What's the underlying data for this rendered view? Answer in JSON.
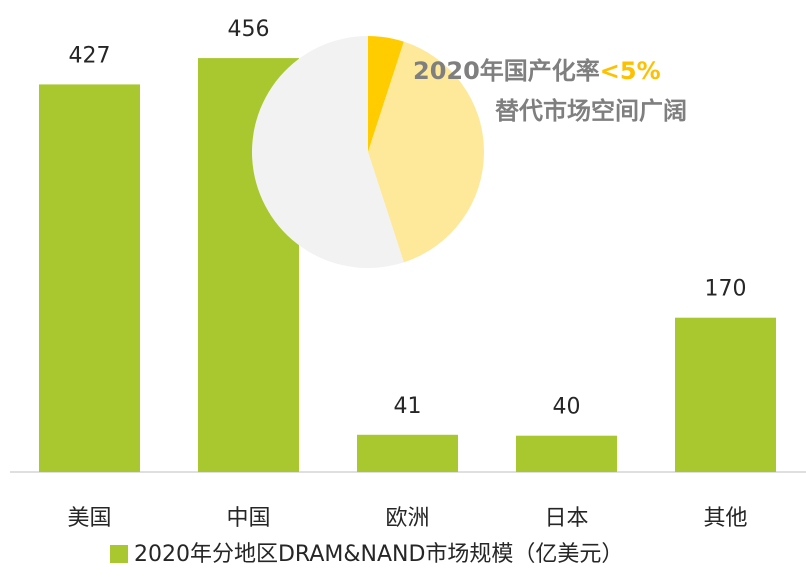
{
  "chart_data": [
    {
      "type": "bar",
      "categories": [
        "美国",
        "中国",
        "欧洲",
        "日本",
        "其他"
      ],
      "series": [
        {
          "name": "2020年分地区DRAM&NAND市场规模（亿美元）",
          "color": "#a9c830",
          "values": [
            427,
            456,
            41,
            40,
            170
          ]
        }
      ],
      "ylim": [
        0,
        520
      ],
      "legend": "bottom"
    },
    {
      "type": "pie",
      "values": [
        5,
        40,
        55
      ],
      "colors": [
        "#ffcc00",
        "#fee89a",
        "#f2f2f2"
      ],
      "annotation": [
        "2020年国产化率",
        "<5%"
      ],
      "subtitle": "替代市场空间广阔"
    }
  ]
}
